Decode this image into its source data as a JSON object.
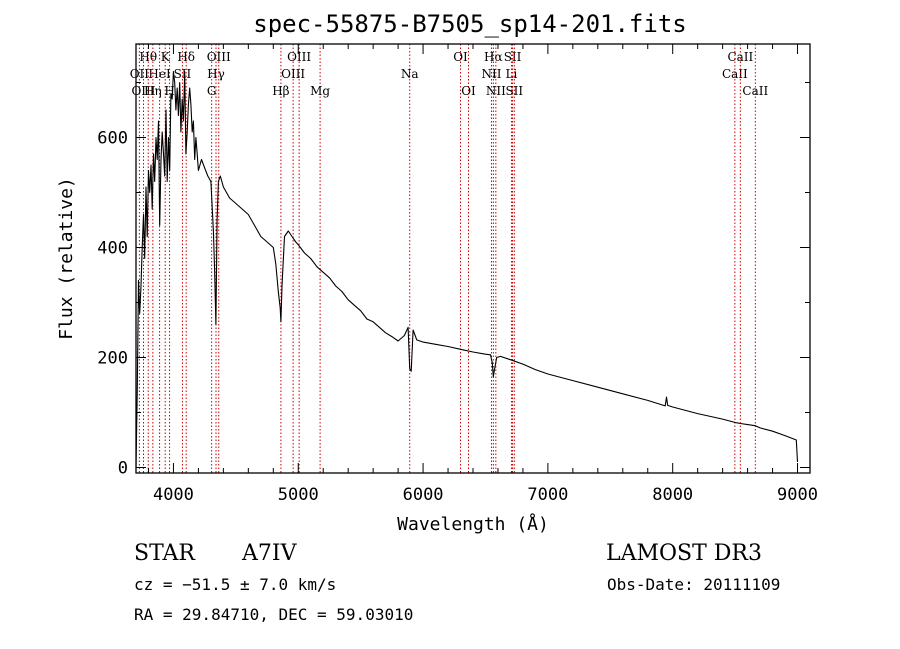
{
  "chart_data": {
    "type": "line",
    "title": "spec-55875-B7505_sp14-201.fits",
    "xlabel": "Wavelength (Å)",
    "ylabel": "Flux (relative)",
    "xlim": [
      3700,
      9100
    ],
    "ylim": [
      -10,
      770
    ],
    "xticks": [
      4000,
      5000,
      6000,
      7000,
      8000,
      9000
    ],
    "yticks": [
      0,
      200,
      400,
      600
    ],
    "series": [
      {
        "name": "spectrum",
        "color": "#000000",
        "x": [
          3700,
          3710,
          3720,
          3730,
          3740,
          3750,
          3760,
          3770,
          3780,
          3790,
          3800,
          3810,
          3820,
          3830,
          3840,
          3850,
          3860,
          3870,
          3880,
          3890,
          3900,
          3910,
          3920,
          3930,
          3940,
          3950,
          3960,
          3970,
          3980,
          3990,
          4000,
          4010,
          4020,
          4030,
          4040,
          4050,
          4060,
          4070,
          4080,
          4090,
          4100,
          4110,
          4120,
          4130,
          4140,
          4150,
          4160,
          4170,
          4180,
          4190,
          4200,
          4225,
          4250,
          4275,
          4300,
          4320,
          4330,
          4340,
          4350,
          4360,
          4375,
          4400,
          4450,
          4500,
          4550,
          4600,
          4650,
          4700,
          4750,
          4800,
          4820,
          4840,
          4855,
          4861,
          4870,
          4890,
          4920,
          4950,
          4980,
          5000,
          5050,
          5100,
          5150,
          5200,
          5250,
          5300,
          5350,
          5400,
          5450,
          5500,
          5550,
          5600,
          5650,
          5700,
          5750,
          5800,
          5850,
          5880,
          5893,
          5905,
          5920,
          5950,
          6000,
          6100,
          6200,
          6300,
          6400,
          6500,
          6540,
          6555,
          6563,
          6570,
          6590,
          6620,
          6700,
          6800,
          6900,
          7000,
          7200,
          7400,
          7600,
          7800,
          7940,
          7950,
          7960,
          8000,
          8200,
          8400,
          8498,
          8542,
          8600,
          8662,
          8700,
          8800,
          8900,
          8990,
          9000
        ],
        "values": [
          0,
          130,
          340,
          280,
          330,
          400,
          460,
          380,
          510,
          420,
          540,
          500,
          550,
          470,
          570,
          520,
          600,
          560,
          630,
          440,
          560,
          610,
          570,
          530,
          650,
          520,
          600,
          540,
          680,
          670,
          720,
          700,
          650,
          690,
          640,
          700,
          610,
          670,
          630,
          720,
          570,
          610,
          660,
          690,
          660,
          610,
          630,
          560,
          600,
          570,
          540,
          560,
          545,
          530,
          520,
          430,
          360,
          260,
          450,
          520,
          530,
          510,
          490,
          480,
          470,
          460,
          440,
          420,
          410,
          400,
          370,
          320,
          290,
          265,
          330,
          420,
          430,
          420,
          410,
          405,
          390,
          380,
          365,
          355,
          345,
          330,
          320,
          305,
          295,
          285,
          270,
          265,
          255,
          245,
          238,
          230,
          240,
          255,
          180,
          175,
          250,
          232,
          228,
          224,
          220,
          215,
          210,
          206,
          205,
          190,
          165,
          175,
          200,
          202,
          196,
          188,
          178,
          170,
          158,
          146,
          134,
          122,
          112,
          128,
          113,
          110,
          98,
          88,
          82,
          80,
          78,
          76,
          72,
          66,
          58,
          50,
          10
        ]
      }
    ],
    "lines": [
      {
        "name": "OII",
        "wavelength": 3727,
        "row": 1
      },
      {
        "name": "OIII",
        "wavelength": 3760,
        "row": 2
      },
      {
        "name": "Hθ",
        "wavelength": 3798,
        "row": 0
      },
      {
        "name": "Hη",
        "wavelength": 3835,
        "row": 2
      },
      {
        "name": "HeI",
        "wavelength": 3889,
        "row": 1
      },
      {
        "name": "K",
        "wavelength": 3934,
        "row": 0
      },
      {
        "name": "H",
        "wavelength": 3969,
        "row": 2
      },
      {
        "name": "SII",
        "wavelength": 4072,
        "row": 1
      },
      {
        "name": "Hδ",
        "wavelength": 4102,
        "row": 0
      },
      {
        "name": "G",
        "wavelength": 4306,
        "row": 2
      },
      {
        "name": "Hγ",
        "wavelength": 4341,
        "row": 1
      },
      {
        "name": "OIII",
        "wavelength": 4363,
        "row": 0
      },
      {
        "name": "Hβ",
        "wavelength": 4861,
        "row": 2
      },
      {
        "name": "OIII",
        "wavelength": 4959,
        "row": 1
      },
      {
        "name": "OIII",
        "wavelength": 5007,
        "row": 0
      },
      {
        "name": "Mg",
        "wavelength": 5175,
        "row": 2
      },
      {
        "name": "Na",
        "wavelength": 5893,
        "row": 1
      },
      {
        "name": "OI",
        "wavelength": 6300,
        "row": 0
      },
      {
        "name": "OI",
        "wavelength": 6364,
        "row": 2
      },
      {
        "name": "NII",
        "wavelength": 6548,
        "row": 1
      },
      {
        "name": "Hα",
        "wavelength": 6563,
        "row": 0
      },
      {
        "name": "NII",
        "wavelength": 6583,
        "row": 2
      },
      {
        "name": "Li",
        "wavelength": 6708,
        "row": 1
      },
      {
        "name": "SII",
        "wavelength": 6717,
        "row": 0
      },
      {
        "name": "SII",
        "wavelength": 6731,
        "row": 2
      },
      {
        "name": "CaII",
        "wavelength": 8498,
        "row": 1
      },
      {
        "name": "CaII",
        "wavelength": 8542,
        "row": 0
      },
      {
        "name": "CaII",
        "wavelength": 8662,
        "row": 2
      }
    ],
    "line_color": "#cc0000"
  },
  "footer": {
    "object_class": "STAR",
    "subclass": "A7IV",
    "survey": "LAMOST DR3",
    "cz": "cz = −51.5 ± 7.0 km/s",
    "obs_date": "Obs-Date: 20111109",
    "coords": "RA =  29.84710, DEC =  59.03010"
  }
}
